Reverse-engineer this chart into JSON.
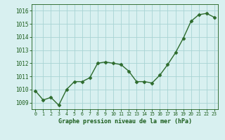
{
  "x": [
    0,
    1,
    2,
    3,
    4,
    5,
    6,
    7,
    8,
    9,
    10,
    11,
    12,
    13,
    14,
    15,
    16,
    17,
    18,
    19,
    20,
    21,
    22,
    23
  ],
  "y": [
    1009.9,
    1009.2,
    1009.4,
    1008.8,
    1010.0,
    1010.6,
    1010.6,
    1010.9,
    1012.0,
    1012.1,
    1012.0,
    1011.9,
    1011.4,
    1010.6,
    1010.6,
    1010.5,
    1011.1,
    1011.9,
    1012.8,
    1013.9,
    1015.2,
    1015.7,
    1015.8,
    1015.5
  ],
  "line_color": "#2d6b2d",
  "marker": "D",
  "marker_size": 2.5,
  "bg_color": "#d8f0f0",
  "grid_color": "#a8d4d4",
  "xlabel": "Graphe pression niveau de la mer (hPa)",
  "xlabel_color": "#1a5c1a",
  "tick_color": "#1a5c1a",
  "ylim": [
    1008.5,
    1016.5
  ],
  "yticks": [
    1009,
    1010,
    1011,
    1012,
    1013,
    1014,
    1015,
    1016
  ],
  "xlim": [
    -0.5,
    23.5
  ],
  "xticks": [
    0,
    1,
    2,
    3,
    4,
    5,
    6,
    7,
    8,
    9,
    10,
    11,
    12,
    13,
    14,
    15,
    16,
    17,
    18,
    19,
    20,
    21,
    22,
    23
  ]
}
